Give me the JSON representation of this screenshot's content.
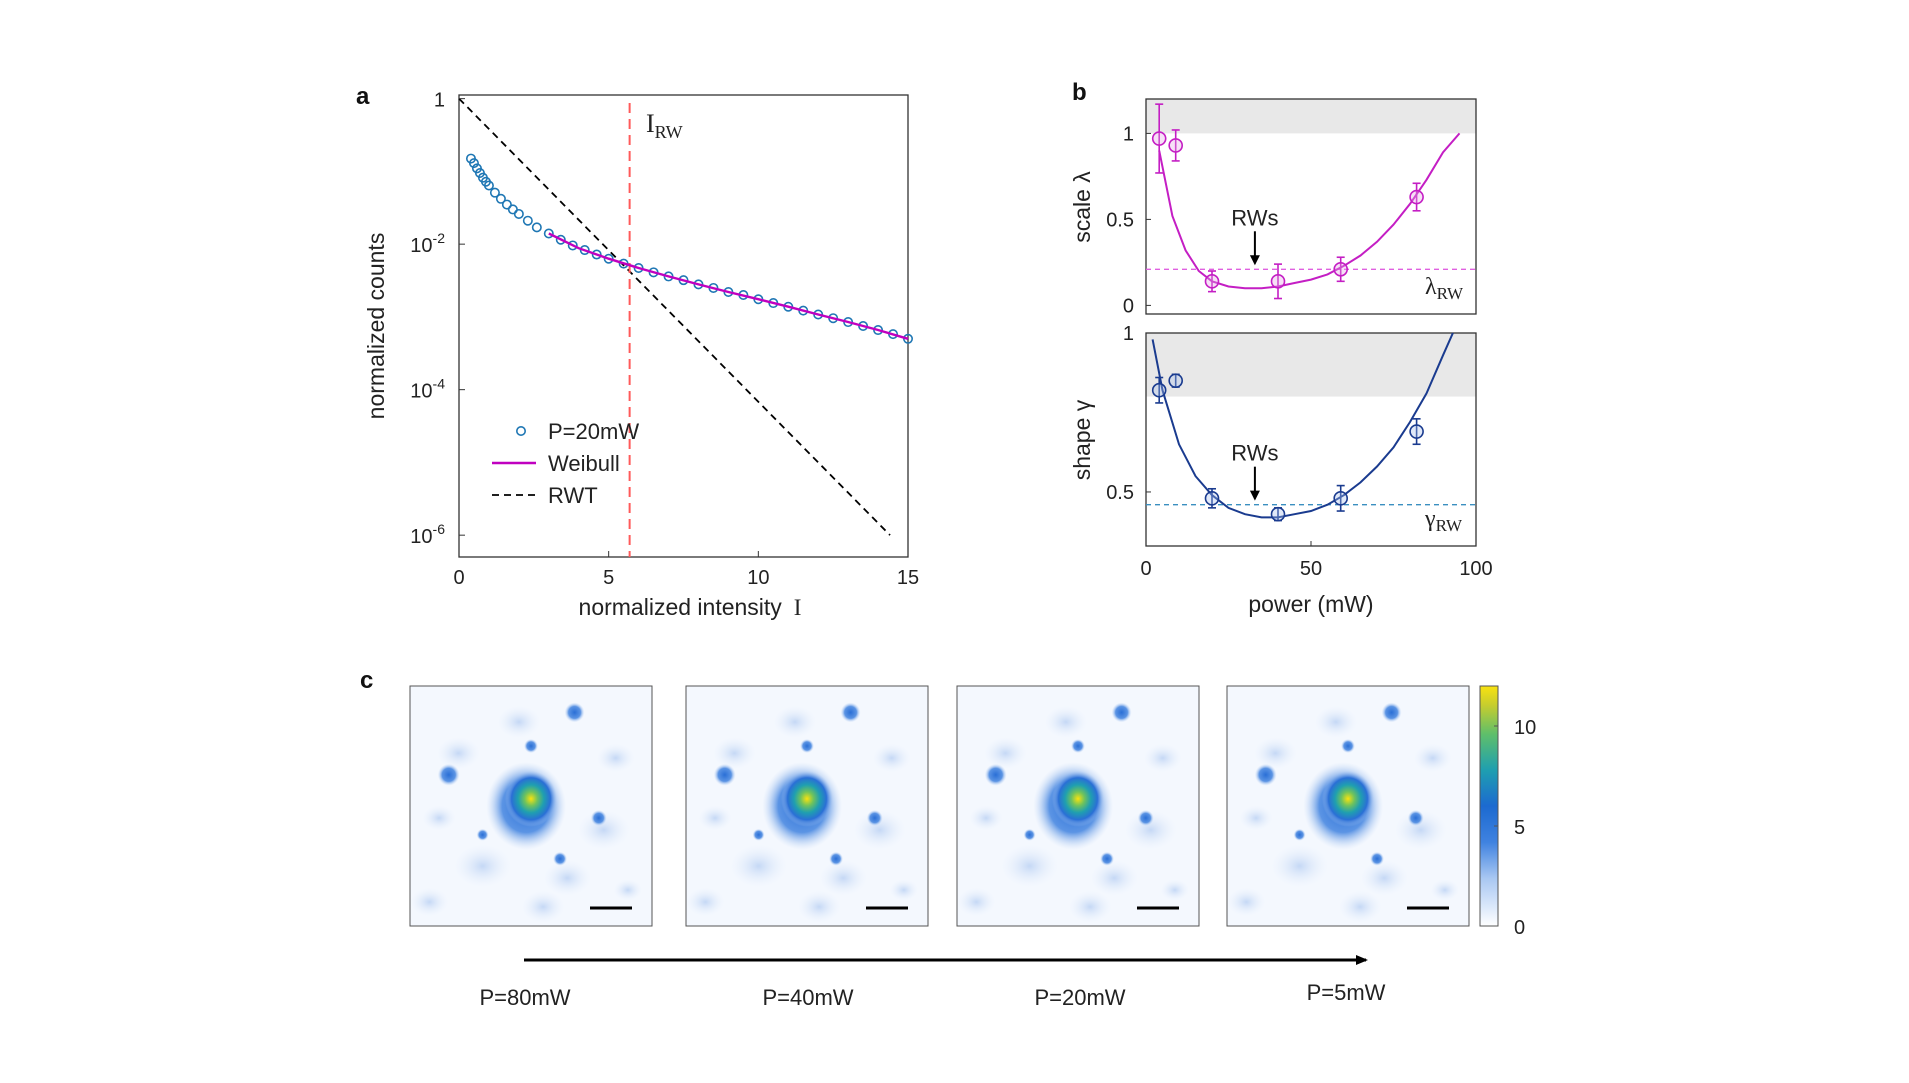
{
  "colors": {
    "data_points": "#1f77b4",
    "weibull": "#c000c0",
    "rwt": "#000000",
    "irw_line": "#ff5a5a",
    "scale_series": "#c41ec4",
    "shape_series": "#1a3b8f",
    "scale_threshold": "#e060e0",
    "shape_threshold": "#3a8fc0",
    "shade": "#e9e9e9"
  },
  "panels": {
    "a": "a",
    "b": "b",
    "c": "c"
  },
  "chart_data": [
    {
      "panel": "a",
      "type": "scatter",
      "xlabel": "normalized intensity",
      "xlabel_symbol": "I",
      "ylabel": "normalized counts",
      "xlim": [
        0,
        15
      ],
      "ylim_log10": [
        -6.3,
        0.05
      ],
      "yscale": "log",
      "xticks": [
        "0",
        "5",
        "10",
        "15"
      ],
      "yticks": [
        {
          "base": "1",
          "exp": ""
        },
        {
          "base": "10",
          "exp": "-2"
        },
        {
          "base": "10",
          "exp": "-4"
        },
        {
          "base": "10",
          "exp": "-6"
        }
      ],
      "annotation": {
        "symbol": "I",
        "subscript": "RW",
        "x": 5.7
      },
      "legend": [
        {
          "name": "P=20mW",
          "style": "circle"
        },
        {
          "name": "Weibull",
          "style": "solid"
        },
        {
          "name": "RWT",
          "style": "dashed"
        }
      ],
      "series": [
        {
          "name": "P=20mW",
          "style": "markers",
          "x": [
            0.4,
            0.5,
            0.6,
            0.7,
            0.8,
            0.9,
            1.0,
            1.2,
            1.4,
            1.6,
            1.8,
            2.0,
            2.3,
            2.6,
            3.0,
            3.4,
            3.8,
            4.2,
            4.6,
            5.0,
            5.5,
            6.0,
            6.5,
            7.0,
            7.5,
            8.0,
            8.5,
            9.0,
            9.5,
            10.0,
            10.5,
            11.0,
            11.5,
            12.0,
            12.5,
            13.0,
            13.5,
            14.0,
            14.5,
            15.0
          ],
          "y": [
            0.15,
            0.13,
            0.11,
            0.095,
            0.082,
            0.072,
            0.064,
            0.051,
            0.042,
            0.035,
            0.03,
            0.026,
            0.021,
            0.017,
            0.014,
            0.0115,
            0.0096,
            0.0083,
            0.0072,
            0.0063,
            0.0054,
            0.0047,
            0.0041,
            0.0036,
            0.0032,
            0.0028,
            0.0025,
            0.0022,
            0.002,
            0.00175,
            0.00155,
            0.00138,
            0.00122,
            0.00108,
            0.00096,
            0.00085,
            0.00075,
            0.00066,
            0.00058,
            0.0005
          ]
        },
        {
          "name": "Weibull",
          "style": "line",
          "x": [
            3.0,
            4.0,
            5.0,
            6.0,
            7.0,
            8.0,
            9.0,
            10.0,
            11.0,
            12.0,
            13.0,
            14.0,
            15.0
          ],
          "y": [
            0.014,
            0.0088,
            0.0063,
            0.0047,
            0.0036,
            0.0028,
            0.0022,
            0.00175,
            0.00138,
            0.00108,
            0.00085,
            0.00066,
            0.0005
          ]
        },
        {
          "name": "RWT",
          "style": "dashed",
          "x": [
            0,
            14.4
          ],
          "y": [
            1.0,
            1e-06
          ]
        }
      ]
    },
    {
      "panel": "b-top",
      "type": "scatter",
      "ylabel": "scale λ",
      "xlim": [
        0,
        100
      ],
      "ylim": [
        -0.05,
        1.2
      ],
      "yticks": [
        "0",
        "0.5",
        "1"
      ],
      "shade_from": 1.0,
      "threshold": {
        "label": "λ",
        "subscript": "RW",
        "y": 0.21
      },
      "annotation": {
        "text": "RWs",
        "x": 33
      },
      "series": [
        {
          "name": "scale",
          "x": [
            4,
            9,
            20,
            40,
            59,
            82
          ],
          "y": [
            0.97,
            0.93,
            0.14,
            0.14,
            0.21,
            0.63
          ],
          "err": [
            0.2,
            0.09,
            0.06,
            0.1,
            0.07,
            0.08
          ]
        }
      ],
      "fit": {
        "x": [
          4,
          8,
          12,
          16,
          20,
          25,
          30,
          35,
          40,
          45,
          50,
          55,
          60,
          65,
          70,
          75,
          80,
          85,
          90,
          95
        ],
        "y": [
          0.9,
          0.52,
          0.32,
          0.2,
          0.14,
          0.11,
          0.1,
          0.1,
          0.11,
          0.13,
          0.15,
          0.18,
          0.23,
          0.29,
          0.37,
          0.47,
          0.59,
          0.73,
          0.89,
          1.0
        ]
      }
    },
    {
      "panel": "b-bottom",
      "type": "scatter",
      "ylabel": "shape γ",
      "xlabel": "power (mW)",
      "xlim": [
        0,
        100
      ],
      "ylim": [
        0.33,
        1.0
      ],
      "xticks": [
        "0",
        "50",
        "100"
      ],
      "yticks": [
        "0.5",
        "1"
      ],
      "shade_from": 0.8,
      "threshold": {
        "label": "γ",
        "subscript": "RW",
        "y": 0.46
      },
      "annotation": {
        "text": "RWs",
        "x": 33
      },
      "series": [
        {
          "name": "shape",
          "x": [
            4,
            9,
            20,
            40,
            59,
            82
          ],
          "y": [
            0.82,
            0.85,
            0.48,
            0.43,
            0.48,
            0.69
          ],
          "err": [
            0.04,
            0.02,
            0.03,
            0.02,
            0.04,
            0.04
          ]
        }
      ],
      "fit": {
        "x": [
          2,
          5,
          10,
          15,
          20,
          25,
          30,
          35,
          40,
          45,
          50,
          55,
          60,
          65,
          70,
          75,
          80,
          85,
          90,
          93
        ],
        "y": [
          0.98,
          0.82,
          0.65,
          0.55,
          0.49,
          0.45,
          0.43,
          0.42,
          0.42,
          0.43,
          0.44,
          0.46,
          0.49,
          0.53,
          0.58,
          0.64,
          0.72,
          0.81,
          0.93,
          1.0
        ]
      }
    },
    {
      "panel": "c",
      "type": "heatmap",
      "colorbar": {
        "min": 0,
        "max": 12,
        "ticks": [
          "0",
          "5",
          "10"
        ]
      },
      "images": [
        {
          "label": "P=80mW"
        },
        {
          "label": "P=40mW"
        },
        {
          "label": "P=20mW"
        },
        {
          "label": "P=5mW"
        }
      ]
    }
  ]
}
